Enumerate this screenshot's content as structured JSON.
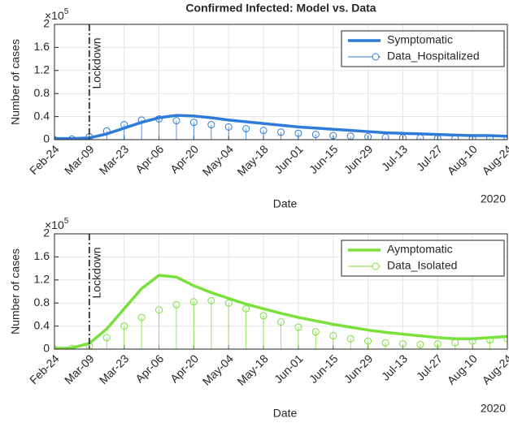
{
  "chart_data": [
    {
      "type": "line",
      "title": "Confirmed Infected: Model vs. Data",
      "ylabel": "Number of cases",
      "xlabel": "Date",
      "year_label": "2020",
      "y_multiplier_base": "×10",
      "y_multiplier_exponent": "5",
      "annotation": {
        "text": "Lockdown",
        "x": "2020-03-09"
      },
      "x": [
        "2020-02-24",
        "2020-03-02",
        "2020-03-09",
        "2020-03-16",
        "2020-03-23",
        "2020-03-30",
        "2020-04-06",
        "2020-04-13",
        "2020-04-20",
        "2020-04-27",
        "2020-05-04",
        "2020-05-11",
        "2020-05-18",
        "2020-05-25",
        "2020-06-01",
        "2020-06-08",
        "2020-06-15",
        "2020-06-22",
        "2020-06-29",
        "2020-07-06",
        "2020-07-13",
        "2020-07-20",
        "2020-07-27",
        "2020-08-03",
        "2020-08-10",
        "2020-08-17",
        "2020-08-24"
      ],
      "series": [
        {
          "name": "Symptomatic",
          "color": "#2f7bd9",
          "style": "line",
          "values": [
            0.02,
            0.02,
            0.03,
            0.1,
            0.2,
            0.3,
            0.38,
            0.42,
            0.41,
            0.38,
            0.34,
            0.31,
            0.28,
            0.25,
            0.22,
            0.2,
            0.18,
            0.16,
            0.14,
            0.12,
            0.11,
            0.1,
            0.09,
            0.08,
            0.07,
            0.07,
            0.06
          ]
        },
        {
          "name": "Data_Hospitalized",
          "color": "#2f7bd9",
          "style": "stem",
          "values": [
            0,
            0.01,
            0.05,
            0.15,
            0.26,
            0.34,
            0.36,
            0.33,
            0.3,
            0.26,
            0.22,
            0.19,
            0.16,
            0.13,
            0.11,
            0.09,
            0.07,
            0.06,
            0.05,
            0.04,
            0.03,
            0.03,
            0.02,
            0.02,
            0.02,
            0.02,
            0.02
          ]
        }
      ],
      "xlim": [
        "2020-02-24",
        "2020-08-24"
      ],
      "xticks": [
        {
          "value": "2020-02-24",
          "label": "Feb-24"
        },
        {
          "value": "2020-03-09",
          "label": "Mar-09"
        },
        {
          "value": "2020-03-23",
          "label": "Mar-23"
        },
        {
          "value": "2020-04-06",
          "label": "Apr-06"
        },
        {
          "value": "2020-04-20",
          "label": "Apr-20"
        },
        {
          "value": "2020-05-04",
          "label": "May-04"
        },
        {
          "value": "2020-05-18",
          "label": "May-18"
        },
        {
          "value": "2020-06-01",
          "label": "Jun-01"
        },
        {
          "value": "2020-06-15",
          "label": "Jun-15"
        },
        {
          "value": "2020-06-29",
          "label": "Jun-29"
        },
        {
          "value": "2020-07-13",
          "label": "Jul-13"
        },
        {
          "value": "2020-07-27",
          "label": "Jul-27"
        },
        {
          "value": "2020-08-10",
          "label": "Aug-10"
        },
        {
          "value": "2020-08-24",
          "label": "Aug-24"
        }
      ],
      "ylim": [
        0,
        2
      ],
      "yticks": [
        0,
        0.4,
        0.8,
        1.2,
        1.6,
        2
      ],
      "grid": true,
      "legend": "northeast"
    },
    {
      "type": "line",
      "ylabel": "Number of cases",
      "xlabel": "Date",
      "year_label": "2020",
      "y_multiplier_base": "×10",
      "y_multiplier_exponent": "5",
      "annotation": {
        "text": "Lockdown",
        "x": "2020-03-09"
      },
      "x": [
        "2020-02-24",
        "2020-03-02",
        "2020-03-09",
        "2020-03-16",
        "2020-03-23",
        "2020-03-30",
        "2020-04-06",
        "2020-04-13",
        "2020-04-20",
        "2020-04-27",
        "2020-05-04",
        "2020-05-11",
        "2020-05-18",
        "2020-05-25",
        "2020-06-01",
        "2020-06-08",
        "2020-06-15",
        "2020-06-22",
        "2020-06-29",
        "2020-07-06",
        "2020-07-13",
        "2020-07-20",
        "2020-07-27",
        "2020-08-03",
        "2020-08-10",
        "2020-08-17",
        "2020-08-24"
      ],
      "series": [
        {
          "name": "Aymptomatic",
          "color": "#7ae03b",
          "style": "line",
          "values": [
            0.01,
            0.02,
            0.1,
            0.35,
            0.7,
            1.05,
            1.28,
            1.25,
            1.1,
            0.98,
            0.88,
            0.78,
            0.7,
            0.62,
            0.55,
            0.49,
            0.43,
            0.38,
            0.33,
            0.29,
            0.26,
            0.23,
            0.2,
            0.18,
            0.18,
            0.2,
            0.22
          ]
        },
        {
          "name": "Data_Isolated",
          "color": "#7ae03b",
          "style": "stem",
          "values": [
            0,
            0.01,
            0.05,
            0.2,
            0.4,
            0.55,
            0.68,
            0.77,
            0.82,
            0.84,
            0.8,
            0.7,
            0.58,
            0.47,
            0.38,
            0.3,
            0.23,
            0.18,
            0.14,
            0.11,
            0.09,
            0.08,
            0.09,
            0.11,
            0.14,
            0.16,
            0.18
          ]
        }
      ],
      "xlim": [
        "2020-02-24",
        "2020-08-24"
      ],
      "xticks": [
        {
          "value": "2020-02-24",
          "label": "Feb-24"
        },
        {
          "value": "2020-03-09",
          "label": "Mar-09"
        },
        {
          "value": "2020-03-23",
          "label": "Mar-23"
        },
        {
          "value": "2020-04-06",
          "label": "Apr-06"
        },
        {
          "value": "2020-04-20",
          "label": "Apr-20"
        },
        {
          "value": "2020-05-04",
          "label": "May-04"
        },
        {
          "value": "2020-05-18",
          "label": "May-18"
        },
        {
          "value": "2020-06-01",
          "label": "Jun-01"
        },
        {
          "value": "2020-06-15",
          "label": "Jun-15"
        },
        {
          "value": "2020-06-29",
          "label": "Jun-29"
        },
        {
          "value": "2020-07-13",
          "label": "Jul-13"
        },
        {
          "value": "2020-07-27",
          "label": "Jul-27"
        },
        {
          "value": "2020-08-10",
          "label": "Aug-10"
        },
        {
          "value": "2020-08-24",
          "label": "Aug-24"
        }
      ],
      "ylim": [
        0,
        2
      ],
      "yticks": [
        0,
        0.4,
        0.8,
        1.2,
        1.6,
        2
      ],
      "grid": true,
      "legend": "northeast"
    }
  ]
}
